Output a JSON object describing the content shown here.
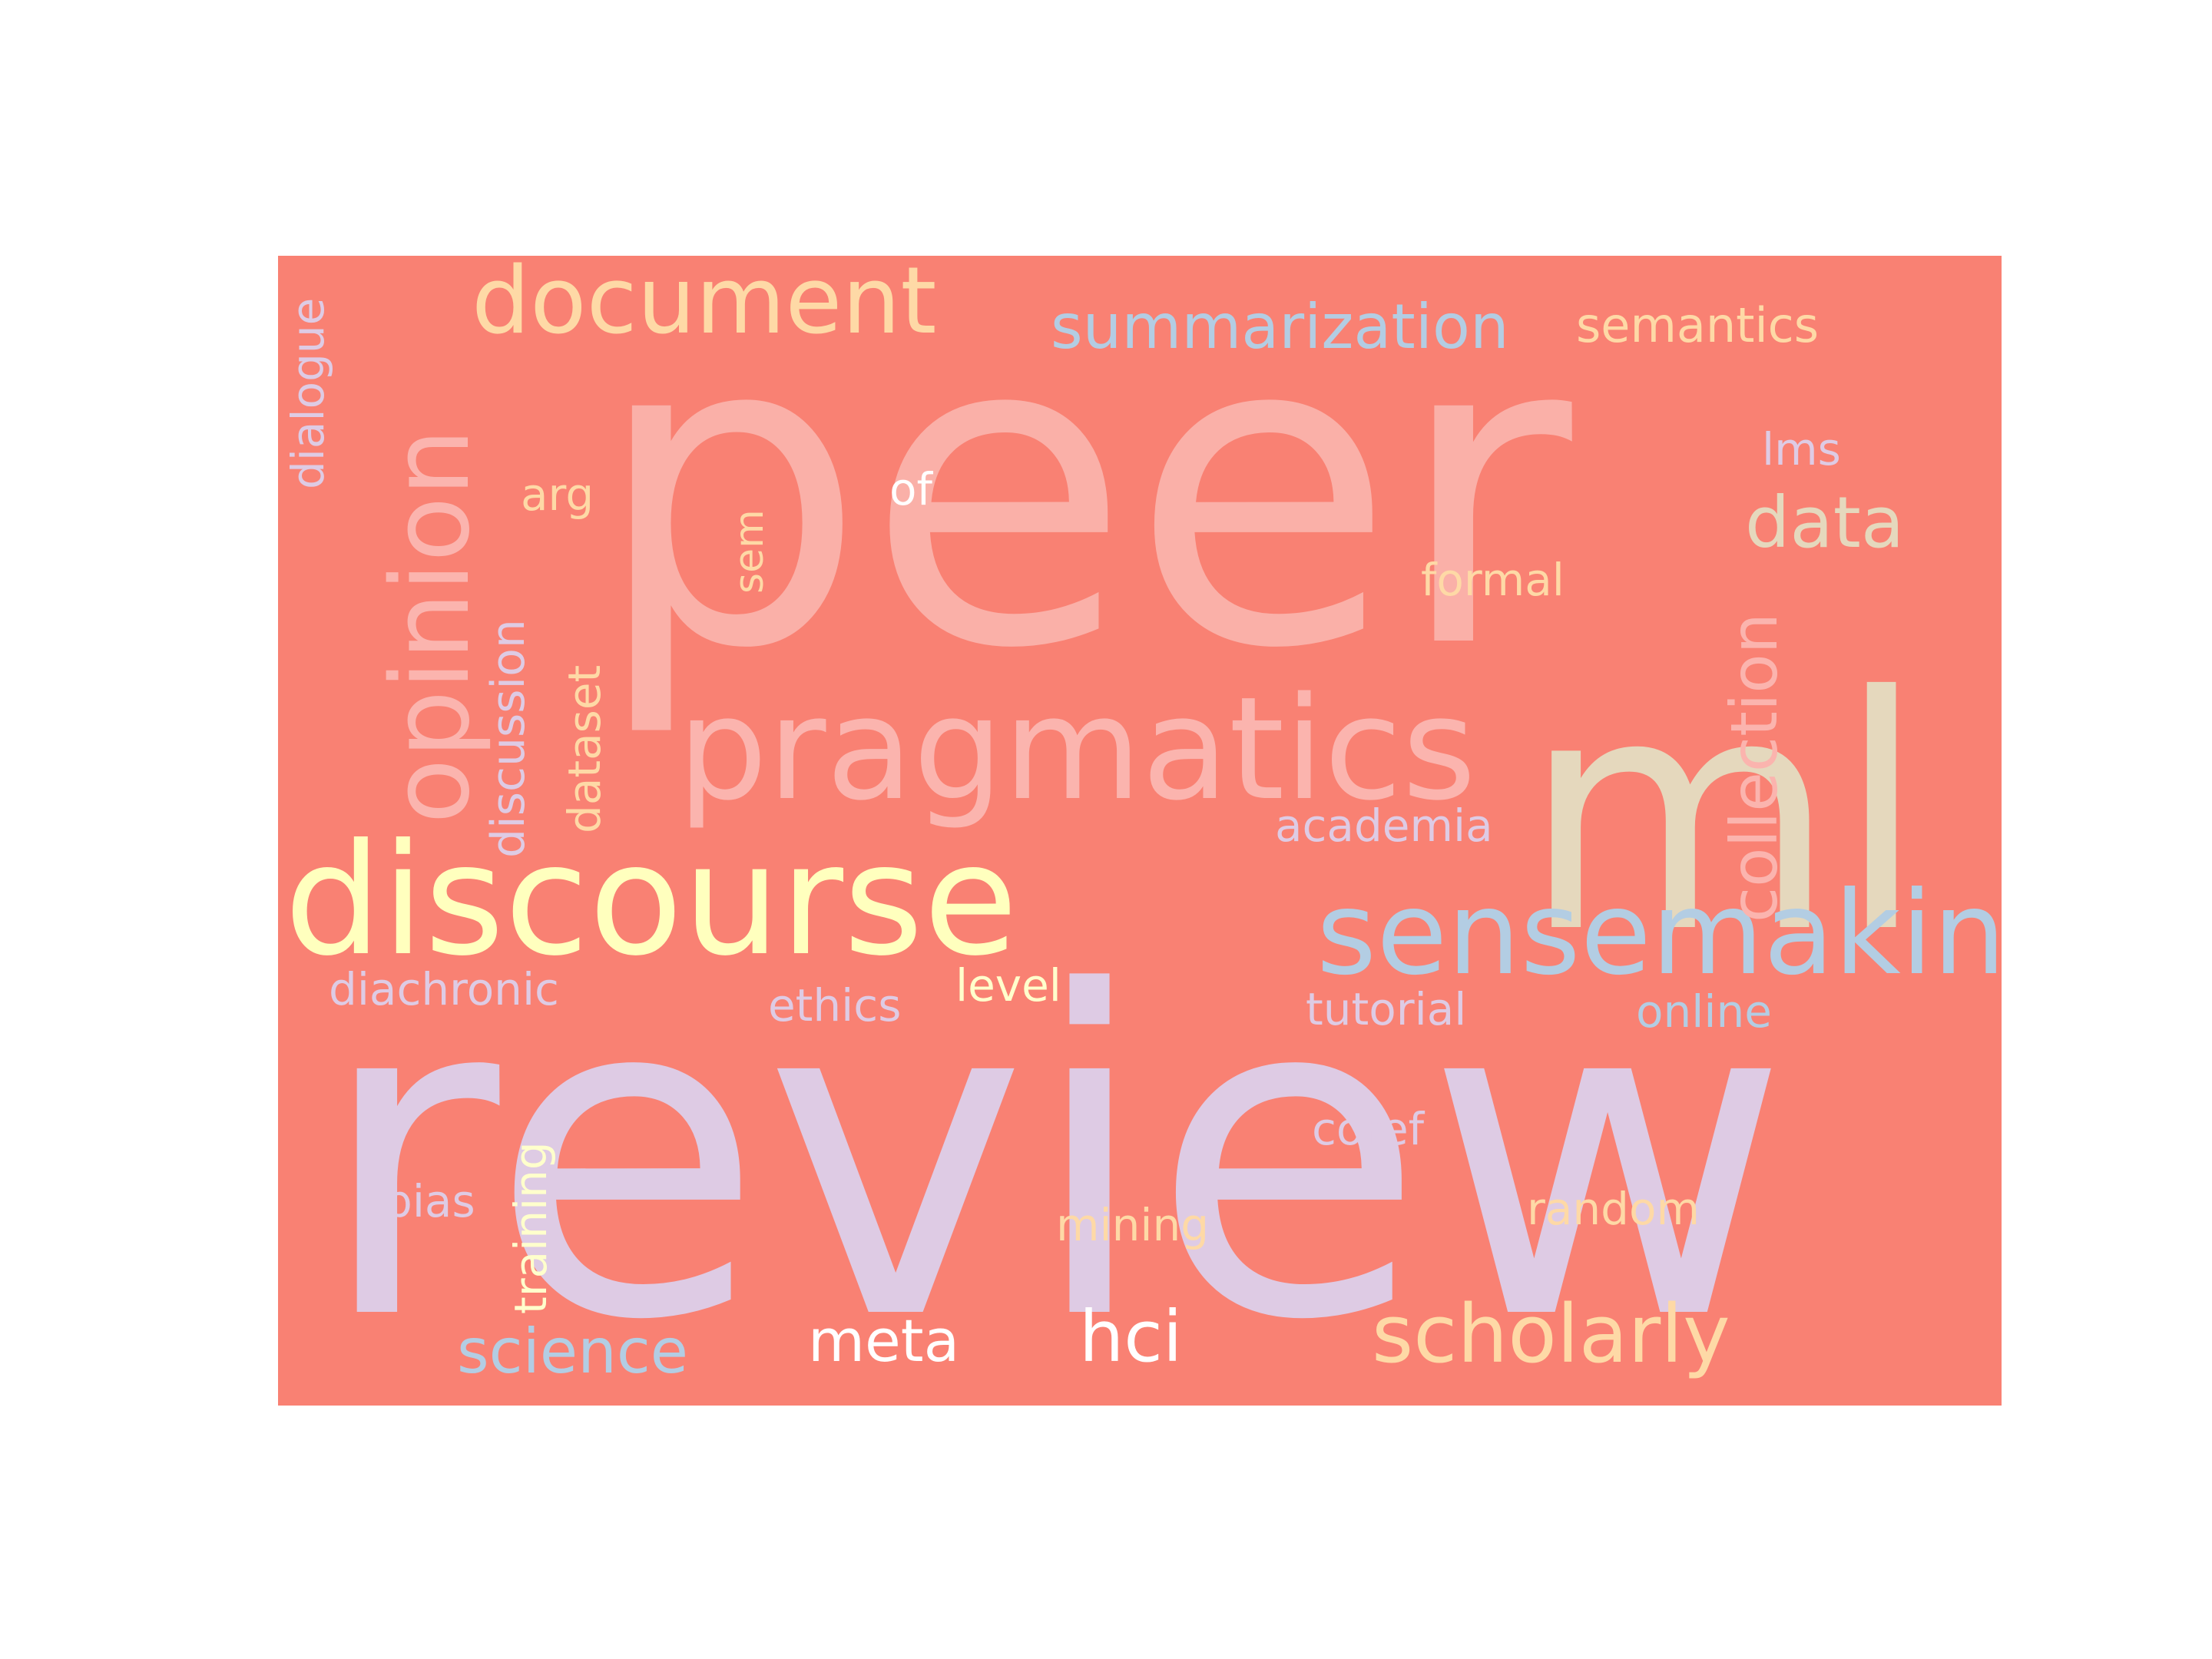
{
  "background_color": "#f98173",
  "words": [
    {
      "id": "peer",
      "text": "peer",
      "color": "#fab0a8"
    },
    {
      "id": "review",
      "text": "review",
      "color": "#decbe4"
    },
    {
      "id": "discourse",
      "text": "discourse",
      "color": "#ffffbe"
    },
    {
      "id": "ml",
      "text": "ml",
      "color": "#e5d8bd"
    },
    {
      "id": "pragmatics",
      "text": "pragmatics",
      "color": "#fbb4ae"
    },
    {
      "id": "sensemaking",
      "text": "sensemaking",
      "color": "#b3cde3"
    },
    {
      "id": "opinion",
      "text": "opinion",
      "color": "#fbb4ae"
    },
    {
      "id": "document",
      "text": "document",
      "color": "#fed9a6"
    },
    {
      "id": "scholarly",
      "text": "scholarly",
      "color": "#fed9a6"
    },
    {
      "id": "summarization",
      "text": "summarization",
      "color": "#b3cde3"
    },
    {
      "id": "collection",
      "text": "collection",
      "color": "#fbb4ae"
    },
    {
      "id": "data",
      "text": "data",
      "color": "#e5d8bd"
    },
    {
      "id": "hci",
      "text": "hci",
      "color": "#ffffff"
    },
    {
      "id": "science",
      "text": "science",
      "color": "#b3cde3"
    },
    {
      "id": "meta",
      "text": "meta",
      "color": "#ffffff"
    },
    {
      "id": "semantics",
      "text": "semantics",
      "color": "#fed9a6"
    },
    {
      "id": "dialogue",
      "text": "dialogue",
      "color": "#decbe4"
    },
    {
      "id": "discussion",
      "text": "discussion",
      "color": "#decbe4"
    },
    {
      "id": "dataset",
      "text": "dataset",
      "color": "#fed9a6"
    },
    {
      "id": "training",
      "text": "training",
      "color": "#ffffcc"
    },
    {
      "id": "sem",
      "text": "sem",
      "color": "#fed9a6"
    },
    {
      "id": "arg",
      "text": "arg",
      "color": "#fed9a6"
    },
    {
      "id": "of",
      "text": "of",
      "color": "#ffffff"
    },
    {
      "id": "lms",
      "text": "lms",
      "color": "#decbe4"
    },
    {
      "id": "formal",
      "text": "formal",
      "color": "#fed9a6"
    },
    {
      "id": "academia",
      "text": "academia",
      "color": "#decbe4"
    },
    {
      "id": "diachronic",
      "text": "diachronic",
      "color": "#decbe4"
    },
    {
      "id": "ethics",
      "text": "ethics",
      "color": "#decbe4"
    },
    {
      "id": "level",
      "text": "level",
      "color": "#ffffcc"
    },
    {
      "id": "tutorial",
      "text": "tutorial",
      "color": "#decbe4"
    },
    {
      "id": "online",
      "text": "online",
      "color": "#b3cde3"
    },
    {
      "id": "coref",
      "text": "coref",
      "color": "#decbe4"
    },
    {
      "id": "bias",
      "text": "bias",
      "color": "#decbe4"
    },
    {
      "id": "mining",
      "text": "mining",
      "color": "#fed9a6"
    },
    {
      "id": "random",
      "text": "random",
      "color": "#fed9a6"
    }
  ]
}
